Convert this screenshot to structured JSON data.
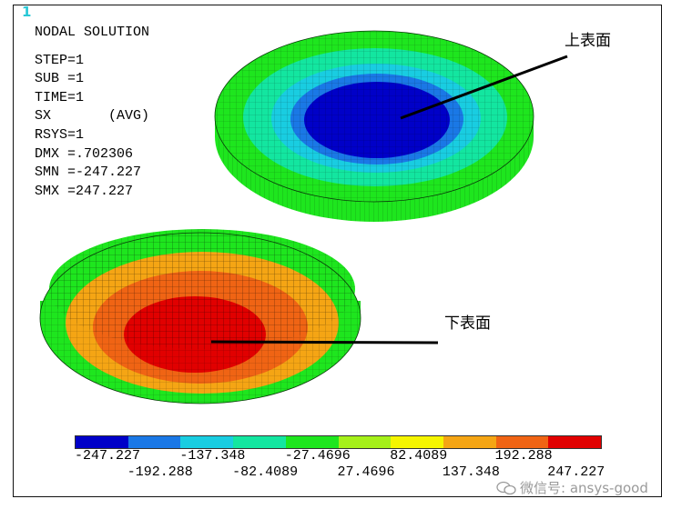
{
  "window_number": "1",
  "info_lines": {
    "title": "NODAL SOLUTION",
    "step": "STEP=1",
    "sub": "SUB =1",
    "time": "TIME=1",
    "item": "SX       (AVG)",
    "rsys": "RSYS=1",
    "dmx": "DMX =.702306",
    "smn": "SMN =-247.227",
    "smx": "SMX =247.227"
  },
  "annotations": {
    "upper": "上表面",
    "lower": "下表面"
  },
  "legend": {
    "colors": [
      "#0000c8",
      "#1a78e6",
      "#19cde1",
      "#13e6a0",
      "#1ee61e",
      "#a5f019",
      "#f5f500",
      "#f5a514",
      "#f06414",
      "#e10000"
    ],
    "labels_top": [
      "-247.227",
      "-137.348",
      "-27.4696",
      "82.4089",
      "192.288"
    ],
    "labels_bottom": [
      "-192.288",
      "-82.4089",
      "27.4696",
      "137.348",
      "247.227"
    ]
  },
  "watermark": {
    "text": "微信号: ansys-good",
    "icon": "wechat-icon"
  }
}
